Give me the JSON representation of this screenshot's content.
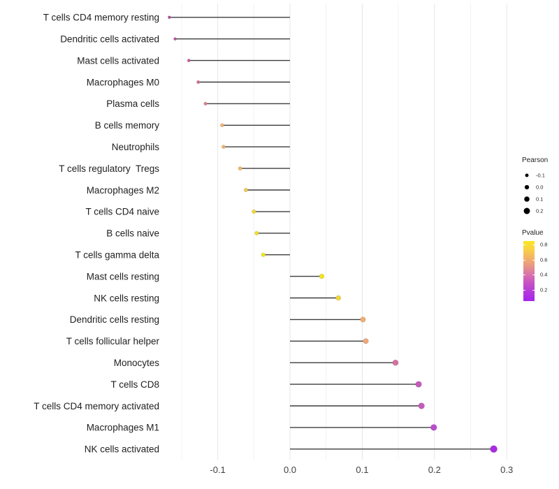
{
  "chart_data": {
    "type": "lollipop",
    "title": "",
    "xlabel": "",
    "ylabel": "",
    "x_axis": {
      "tick_labels": [
        "-0.1",
        "0.0",
        "0.1",
        "0.2",
        "0.3"
      ],
      "tick_values": [
        -0.1,
        0.0,
        0.1,
        0.2,
        0.3
      ],
      "minor_tick_values": [
        -0.15,
        -0.05,
        0.05,
        0.15,
        0.25
      ],
      "xlim": [
        -0.185,
        0.312
      ]
    },
    "grid": "on",
    "points": [
      {
        "label": "T cells CD4 memory resting",
        "pearson": -0.167,
        "pvalue_approx": 0.3,
        "color": "#B1519E"
      },
      {
        "label": "Dendritic cells activated",
        "pearson": -0.159,
        "pvalue_approx": 0.31,
        "color": "#B9539F"
      },
      {
        "label": "Mast cells activated",
        "pearson": -0.14,
        "pvalue_approx": 0.36,
        "color": "#C55E9B"
      },
      {
        "label": "Macrophages M0",
        "pearson": -0.127,
        "pvalue_approx": 0.4,
        "color": "#CE6C95"
      },
      {
        "label": "Plasma cells",
        "pearson": -0.117,
        "pvalue_approx": 0.46,
        "color": "#DB838E"
      },
      {
        "label": "B cells memory",
        "pearson": -0.094,
        "pvalue_approx": 0.6,
        "color": "#EFB271"
      },
      {
        "label": "Neutrophils",
        "pearson": -0.092,
        "pvalue_approx": 0.6,
        "color": "#EFB16D"
      },
      {
        "label": "T cells regulatory  Tregs",
        "pearson": -0.069,
        "pvalue_approx": 0.62,
        "color": "#F0B966"
      },
      {
        "label": "Macrophages M2",
        "pearson": -0.061,
        "pvalue_approx": 0.68,
        "color": "#EFC94F"
      },
      {
        "label": "T cells CD4 naive",
        "pearson": -0.05,
        "pvalue_approx": 0.72,
        "color": "#EFD638"
      },
      {
        "label": "B cells naive",
        "pearson": -0.046,
        "pvalue_approx": 0.75,
        "color": "#F0DE2B"
      },
      {
        "label": "T cells gamma delta",
        "pearson": -0.037,
        "pvalue_approx": 0.8,
        "color": "#F1E51E"
      },
      {
        "label": "Mast cells resting",
        "pearson": 0.044,
        "pvalue_approx": 0.8,
        "color": "#F2E320"
      },
      {
        "label": "NK cells resting",
        "pearson": 0.067,
        "pvalue_approx": 0.72,
        "color": "#EFD53C"
      },
      {
        "label": "Dendritic cells resting",
        "pearson": 0.101,
        "pvalue_approx": 0.58,
        "color": "#EFAE74"
      },
      {
        "label": "T cells follicular helper",
        "pearson": 0.105,
        "pvalue_approx": 0.56,
        "color": "#EFA87A"
      },
      {
        "label": "Monocytes",
        "pearson": 0.146,
        "pvalue_approx": 0.42,
        "color": "#D4719F"
      },
      {
        "label": "T cells CD8",
        "pearson": 0.178,
        "pvalue_approx": 0.3,
        "color": "#C45BBB"
      },
      {
        "label": "T cells CD4 memory activated",
        "pearson": 0.182,
        "pvalue_approx": 0.3,
        "color": "#C45CBD"
      },
      {
        "label": "Macrophages M1",
        "pearson": 0.199,
        "pvalue_approx": 0.25,
        "color": "#BB4CCD"
      },
      {
        "label": "NK cells activated",
        "pearson": 0.282,
        "pvalue_approx": 0.12,
        "color": "#A62BE3"
      }
    ],
    "legend_pearson": {
      "title": "Pearson",
      "items": [
        {
          "label": "-0.1",
          "value": -0.1
        },
        {
          "label": "0.0",
          "value": 0.0
        },
        {
          "label": "0.1",
          "value": 0.1
        },
        {
          "label": "0.2",
          "value": 0.2
        }
      ],
      "dot_color": "#000000"
    },
    "legend_pvalue": {
      "title": "Pvalue",
      "gradient_top_to_bottom": [
        "#FBE723",
        "#F8D146",
        "#F3B268",
        "#E79389",
        "#D670AE",
        "#C44FC7",
        "#B238DB",
        "#A424EE"
      ],
      "labels": [
        {
          "label": "0.8",
          "t": 0.0625
        },
        {
          "label": "0.6",
          "t": 0.3125
        },
        {
          "label": "0.4",
          "t": 0.5625
        },
        {
          "label": "0.2",
          "t": 0.8125
        }
      ]
    },
    "colors": {
      "background": "#ffffff",
      "stem": "#3d3d3d",
      "grid_major": "#e6e6e6",
      "grid_minor": "#f2f2f2",
      "axis_text": "#404040",
      "label_text": "#1f1f1f"
    }
  }
}
